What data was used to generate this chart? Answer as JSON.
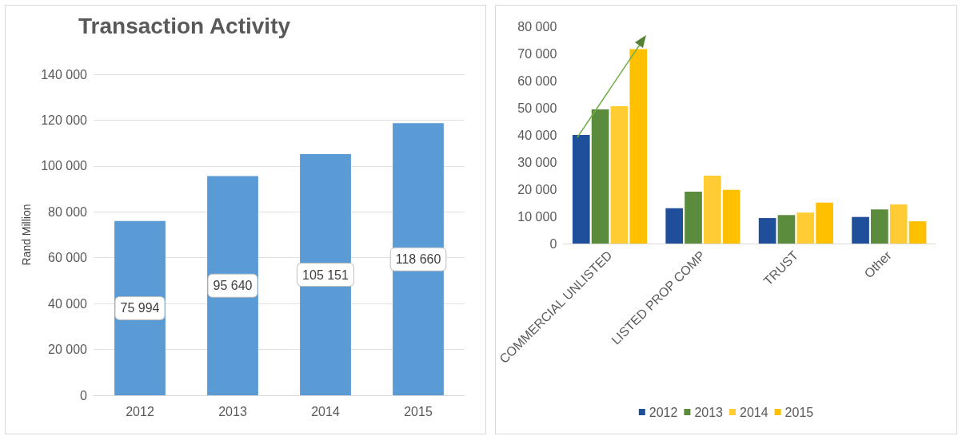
{
  "chart_data": [
    {
      "type": "bar",
      "title": "Transaction Activity",
      "ylabel": "Rand Million",
      "categories": [
        "2012",
        "2013",
        "2014",
        "2015"
      ],
      "values": [
        75994,
        95640,
        105151,
        118660
      ],
      "color": "#5b9bd5",
      "value_labels": [
        "75 994",
        "95 640",
        "105 151",
        "118 660"
      ],
      "ylim": [
        0,
        140000
      ],
      "yticks": [
        {
          "value": 0,
          "label": "0"
        },
        {
          "value": 20000,
          "label": "20 000"
        },
        {
          "value": 40000,
          "label": "40 000"
        },
        {
          "value": 60000,
          "label": "60 000"
        },
        {
          "value": 80000,
          "label": "80 000"
        },
        {
          "value": 100000,
          "label": "100 000"
        },
        {
          "value": 120000,
          "label": "120 000"
        },
        {
          "value": 140000,
          "label": "140 000"
        }
      ],
      "grid": "y",
      "legend": false
    },
    {
      "type": "bar",
      "categories": [
        "COMMERCIAL UNLISTED",
        "LISTED PROP COMP",
        "TRUST",
        "Other"
      ],
      "series": [
        {
          "name": "2012",
          "color": "#1f4e9a",
          "values": [
            40000,
            13000,
            9400,
            9800
          ]
        },
        {
          "name": "2013",
          "color": "#5b8c3e",
          "values": [
            49400,
            19100,
            10500,
            12600
          ]
        },
        {
          "name": "2014",
          "color": "#ffcd33",
          "values": [
            50600,
            25000,
            11400,
            14400
          ]
        },
        {
          "name": "2015",
          "color": "#ffc000",
          "values": [
            71600,
            19800,
            15100,
            8200
          ]
        }
      ],
      "ylim": [
        0,
        80000
      ],
      "yticks": [
        {
          "value": 0,
          "label": "0"
        },
        {
          "value": 10000,
          "label": "10 000"
        },
        {
          "value": 20000,
          "label": "20 000"
        },
        {
          "value": 30000,
          "label": "30 000"
        },
        {
          "value": 40000,
          "label": "40 000"
        },
        {
          "value": 50000,
          "label": "50 000"
        },
        {
          "value": 60000,
          "label": "60 000"
        },
        {
          "value": 70000,
          "label": "70 000"
        },
        {
          "value": 80000,
          "label": "80 000"
        }
      ],
      "grid": false,
      "legend": "bottom"
    }
  ]
}
